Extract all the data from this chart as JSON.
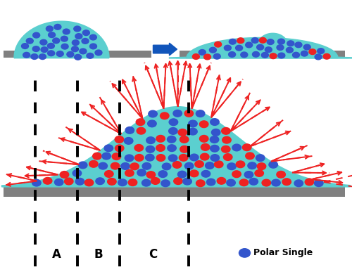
{
  "bg_color": "#ffffff",
  "lc_color": "#5bcfcf",
  "blue_dot_color": "#3355cc",
  "red_dot_color": "#ee2222",
  "arrow_color": "#ee2222",
  "surface_color": "#808080",
  "blue_arrow_color": "#1155bb",
  "label_A": "A",
  "label_B": "B",
  "label_C": "C",
  "legend_text": "Polar Single"
}
